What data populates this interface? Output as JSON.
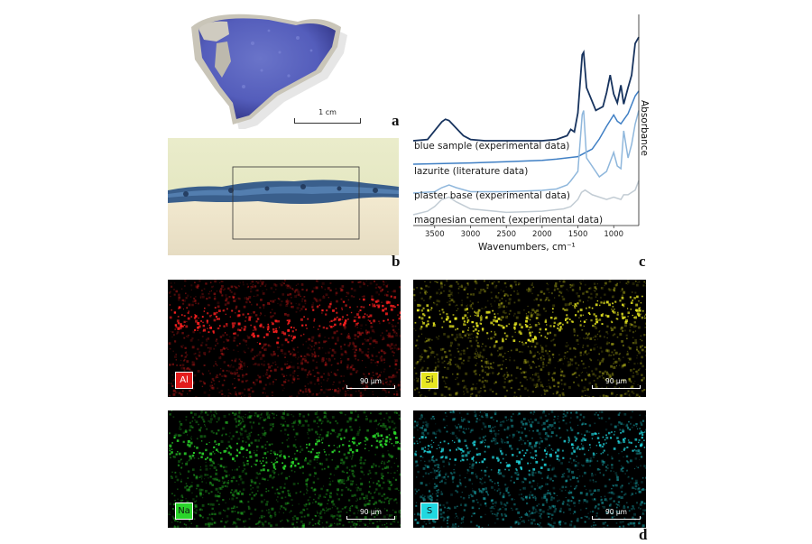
{
  "panel_a": {
    "letter": "a",
    "scale_label": "1 cm"
  },
  "panel_b": {
    "letter": "b"
  },
  "panel_c": {
    "letter": "c",
    "y_axis_label": "Absorbance",
    "x_axis_label": "Wavenumbers, cm⁻¹",
    "spectra_labels": [
      "blue sample (experimental data)",
      "lazurite (literature data)",
      "plaster base (experimental data)",
      "magnesian cement (experimental data)"
    ],
    "series_colors": [
      "#17335e",
      "#3f7fc4",
      "#8fb7dc",
      "#c2ccd4"
    ]
  },
  "panel_d": {
    "letter": "d",
    "maps": [
      {
        "element": "Al",
        "scale_label": "90 µm",
        "color": "#ff2020",
        "badge_bg": "#e31c1c",
        "badge_fg": "#ffffff"
      },
      {
        "element": "Si",
        "scale_label": "90 µm",
        "color": "#e6e620",
        "badge_bg": "#e6e620",
        "badge_fg": "#111111"
      },
      {
        "element": "Na",
        "scale_label": "90 µm",
        "color": "#2ad42a",
        "badge_bg": "#2ad42a",
        "badge_fg": "#111111"
      },
      {
        "element": "S",
        "scale_label": "90 µm",
        "color": "#20d8e0",
        "badge_bg": "#20d8e0",
        "badge_fg": "#111111"
      }
    ]
  },
  "chart_data": {
    "type": "line",
    "title": "",
    "xlabel": "Wavenumbers, cm⁻¹",
    "ylabel": "Absorbance",
    "x_ticks": [
      3500,
      3000,
      2500,
      2000,
      1500,
      1000
    ],
    "xlim": [
      3800,
      650
    ],
    "x_reversed": true,
    "y_ticks_shown": false,
    "grid": false,
    "series": [
      {
        "name": "blue sample (experimental data)",
        "x": [
          3800,
          3600,
          3500,
          3400,
          3350,
          3300,
          3200,
          3100,
          3000,
          2800,
          2500,
          2000,
          1800,
          1650,
          1600,
          1550,
          1500,
          1440,
          1420,
          1380,
          1250,
          1150,
          1100,
          1050,
          1000,
          950,
          900,
          860,
          800,
          750,
          700,
          650
        ],
        "y": [
          0.18,
          0.19,
          0.26,
          0.33,
          0.35,
          0.34,
          0.28,
          0.22,
          0.19,
          0.18,
          0.18,
          0.18,
          0.19,
          0.22,
          0.27,
          0.25,
          0.4,
          0.86,
          0.88,
          0.6,
          0.42,
          0.45,
          0.56,
          0.7,
          0.55,
          0.48,
          0.62,
          0.47,
          0.6,
          0.7,
          0.95,
          1.0
        ]
      },
      {
        "name": "lazurite (literature data)",
        "x": [
          3800,
          3000,
          2500,
          2000,
          1800,
          1500,
          1300,
          1200,
          1100,
          1000,
          950,
          900,
          800,
          700,
          650
        ],
        "y": [
          0.06,
          0.07,
          0.08,
          0.09,
          0.1,
          0.12,
          0.18,
          0.26,
          0.36,
          0.45,
          0.4,
          0.38,
          0.46,
          0.6,
          0.64
        ]
      },
      {
        "name": "plaster base (experimental data)",
        "x": [
          3800,
          3500,
          3400,
          3300,
          3200,
          3000,
          2500,
          2000,
          1800,
          1650,
          1600,
          1500,
          1440,
          1420,
          1380,
          1200,
          1100,
          1000,
          950,
          900,
          860,
          800,
          750,
          700,
          650
        ],
        "y": [
          -0.06,
          -0.05,
          -0.02,
          0.0,
          -0.02,
          -0.05,
          -0.05,
          -0.04,
          -0.03,
          0.0,
          0.03,
          0.1,
          0.52,
          0.55,
          0.2,
          0.06,
          0.1,
          0.24,
          0.14,
          0.12,
          0.4,
          0.2,
          0.3,
          0.45,
          0.55
        ]
      },
      {
        "name": "magnesian cement (experimental data)",
        "x": [
          3800,
          3600,
          3500,
          3400,
          3300,
          3200,
          3000,
          2500,
          2000,
          1700,
          1600,
          1500,
          1450,
          1400,
          1300,
          1100,
          1000,
          900,
          860,
          800,
          750,
          700,
          650
        ],
        "y": [
          -0.17,
          -0.14,
          -0.1,
          -0.04,
          -0.02,
          -0.06,
          -0.12,
          -0.15,
          -0.14,
          -0.12,
          -0.1,
          -0.04,
          0.02,
          0.04,
          0.0,
          -0.04,
          -0.02,
          -0.04,
          0.0,
          0.0,
          0.02,
          0.04,
          0.12
        ]
      }
    ]
  }
}
